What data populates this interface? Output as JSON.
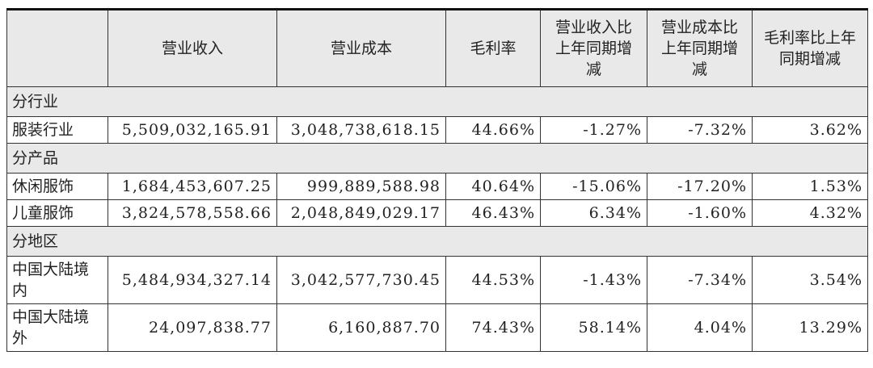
{
  "table": {
    "header": [
      "营业收入",
      "营业成本",
      "毛利率",
      "营业收入比上年同期增减",
      "营业成本比上年同期增减",
      "毛利率比上年同期增减"
    ],
    "rows": [
      {
        "section": "分行业"
      },
      [
        "服装行业",
        "5,509,032,165.91",
        "3,048,738,618.15",
        "44.66%",
        "-1.27%",
        "-7.32%",
        "3.62%"
      ],
      {
        "section": "分产品"
      },
      [
        "休闲服饰",
        "1,684,453,607.25",
        "999,889,588.98",
        "40.64%",
        "-15.06%",
        "-17.20%",
        "1.53%"
      ],
      [
        "儿童服饰",
        "3,824,578,558.66",
        "2,048,849,029.17",
        "46.43%",
        "6.34%",
        "-1.60%",
        "4.32%"
      ],
      {
        "section": "分地区"
      },
      [
        "中国大陆境内",
        "5,484,934,327.14",
        "3,042,577,730.45",
        "44.53%",
        "-1.43%",
        "-7.34%",
        "3.54%"
      ],
      [
        "中国大陆境外",
        "24,097,838.77",
        "6,160,887.70",
        "74.43%",
        "58.14%",
        "4.04%",
        "13.29%"
      ]
    ]
  }
}
